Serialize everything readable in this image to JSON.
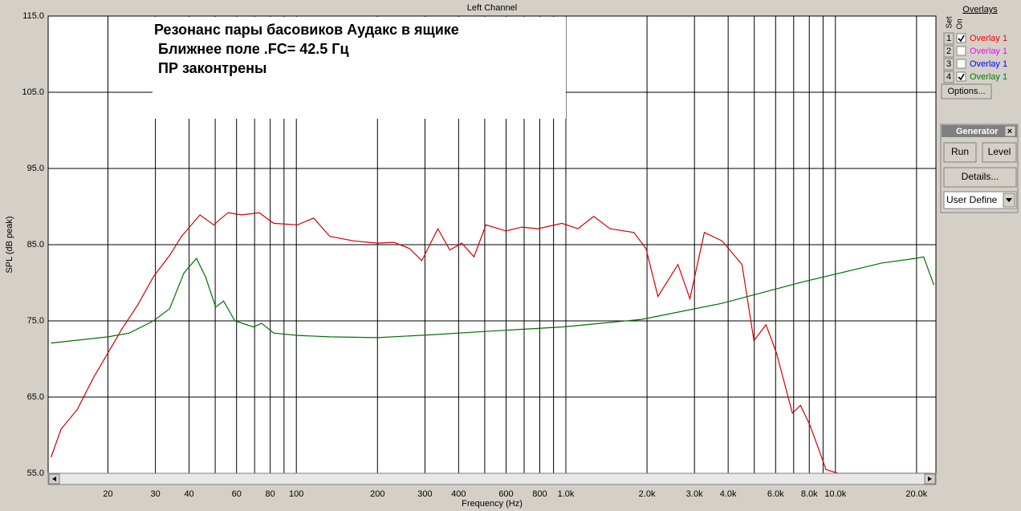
{
  "chart_data": {
    "type": "line",
    "title": "Left Channel",
    "annotation": [
      "Резонанс  пары басовиков Аудакс  в ящике",
      " Ближнее поле .FC= 42.5 Гц",
      " ПР законтрены"
    ],
    "x_label": "Frequency (Hz)",
    "y_label": "SPL (dB peak)",
    "log_x": true,
    "grid": true,
    "xlim": [
      12,
      23600
    ],
    "ylim": [
      55,
      115
    ],
    "yticks": [
      {
        "value": 55,
        "label": "55.0"
      },
      {
        "value": 65,
        "label": "65.0"
      },
      {
        "value": 75,
        "label": "75.0"
      },
      {
        "value": 85,
        "label": "85.0"
      },
      {
        "value": 95,
        "label": "95.0"
      },
      {
        "value": 105,
        "label": "105.0"
      },
      {
        "value": 115,
        "label": "115.0"
      }
    ],
    "xticks": [
      20,
      30,
      40,
      60,
      80,
      100,
      200,
      300,
      400,
      600,
      800,
      {
        "value": 1000,
        "label": "1.0k"
      },
      {
        "value": 2000,
        "label": "2.0k"
      },
      {
        "value": 3000,
        "label": "3.0k"
      },
      {
        "value": 4000,
        "label": "4.0k"
      },
      {
        "value": 6000,
        "label": "6.0k"
      },
      {
        "value": 8000,
        "label": "8.0k"
      },
      {
        "value": 10000,
        "label": "10.0k"
      },
      {
        "value": 20000,
        "label": "20.0k"
      }
    ],
    "minor_xticks": [
      50,
      70,
      90,
      500,
      700,
      900,
      5000,
      7000,
      9000
    ],
    "series": [
      {
        "name": "Overlay 1",
        "color": "#d00000",
        "x": [
          12.3,
          13.4,
          15.4,
          17.7,
          20,
          22.5,
          25.8,
          29.5,
          33.9,
          37.5,
          43.9,
          49.3,
          55.8,
          62.7,
          72.8,
          82.4,
          101,
          116,
          133,
          163,
          200,
          230,
          263,
          292,
          335,
          371,
          411,
          456,
          505,
          599,
          687,
          787,
          967,
          1108,
          1270,
          1457,
          1788,
          1982,
          2196,
          2604,
          2885,
          3264,
          3797,
          4501,
          4988,
          5525,
          6040,
          6925,
          7420,
          8050,
          9230,
          10230,
          22460
        ],
        "values": [
          57.1,
          60.8,
          63.4,
          67.6,
          70.8,
          73.9,
          77.1,
          80.8,
          83.6,
          86.1,
          88.9,
          87.6,
          89.2,
          88.9,
          89.2,
          87.8,
          87.6,
          88.5,
          86.1,
          85.5,
          85.2,
          85.3,
          84.5,
          82.9,
          87.1,
          84.3,
          85.2,
          83.4,
          87.6,
          86.8,
          87.3,
          87.1,
          87.8,
          87.1,
          88.7,
          87.1,
          86.6,
          84.5,
          78.2,
          82.4,
          77.9,
          86.6,
          85.5,
          82.4,
          72.4,
          74.5,
          70.8,
          62.9,
          63.9,
          61.3,
          55.5,
          55,
          55
        ]
      },
      {
        "name": "Overlay 1",
        "color": "#007000",
        "x": [
          12.3,
          20,
          24,
          29.5,
          33.9,
          38.3,
          42.6,
          46,
          50.2,
          53.7,
          59.2,
          69.4,
          74.3,
          82.4,
          101,
          133,
          200,
          324,
          493,
          967,
          1912,
          3797,
          7530,
          14900,
          19830,
          21250,
          23200
        ],
        "values": [
          72.1,
          72.9,
          73.4,
          75,
          76.6,
          81.3,
          83.2,
          80.8,
          76.8,
          77.6,
          75,
          74.2,
          74.7,
          73.4,
          73.1,
          72.9,
          72.8,
          73.2,
          73.6,
          74.2,
          75.2,
          77.3,
          80.1,
          82.6,
          83.2,
          83.4,
          79.7
        ]
      }
    ]
  },
  "ui": {
    "overlays_title": "Overlays",
    "set_label": "Set",
    "on_label": "On",
    "overlays": [
      {
        "set": "1",
        "checked": true,
        "name": "Overlay 1",
        "color": "#ff0000"
      },
      {
        "set": "2",
        "checked": false,
        "name": "Overlay 1",
        "color": "#ff00ff"
      },
      {
        "set": "3",
        "checked": false,
        "name": "Overlay 1",
        "color": "#0000ff"
      },
      {
        "set": "4",
        "checked": true,
        "name": "Overlay 1",
        "color": "#008000"
      }
    ],
    "options_button": "Options...",
    "generator_title": "Generator",
    "run_button": "Run",
    "level_button": "Level",
    "details_button": "Details...",
    "mode_select": "User Define"
  }
}
